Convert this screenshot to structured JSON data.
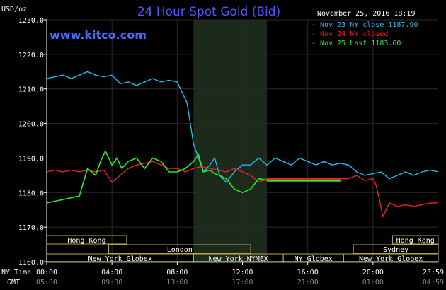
{
  "chart_data": {
    "type": "line",
    "title": "24 Hour Spot Gold (Bid)",
    "watermark": "www.kitco.com",
    "y_unit_label": "USD/oz",
    "timestamp": "November 25, 2016 18:19",
    "ylim": [
      1160,
      1230
    ],
    "y_ticks": [
      "1230.0",
      "1220.0",
      "1210.0",
      "1200.0",
      "1190.0",
      "1180.0",
      "1170.0",
      "1160.0"
    ],
    "y_tick_values": [
      1230,
      1220,
      1210,
      1200,
      1190,
      1180,
      1170,
      1160
    ],
    "x_axis_ny_label": "NY Time",
    "x_axis_gmt_label": "GMT",
    "x_ticks_ny": [
      "00:00",
      "04:00",
      "08:00",
      "12:00",
      "16:00",
      "20:00",
      "23:59"
    ],
    "x_ticks_gmt": [
      "05:00",
      "09:00",
      "13:00",
      "17:00",
      "21:00",
      "01:00",
      "04:59"
    ],
    "x_tick_hours": [
      0,
      4,
      8,
      12,
      16,
      20,
      23.98
    ],
    "xlim": [
      0,
      24
    ],
    "shaded_hours": [
      9,
      13.5
    ],
    "colors": {
      "background": "#000000",
      "grid": "#2a2a2a",
      "title": "#5555ff",
      "watermark": "#4a6cff",
      "text": "#ffffff",
      "axis": "#ffffff",
      "shade": "#1b2a1b",
      "session_border": "#b8a84a"
    },
    "legend": [
      {
        "text": "- Nov 23 NY close 1187.90",
        "color": "#22bbee"
      },
      {
        "text": "- Nov 24 NY closed",
        "color": "#ee2222"
      },
      {
        "text": "- Nov 25 Last 1183.60",
        "color": "#22ee22"
      }
    ],
    "sessions": [
      {
        "name": "Hong Kong",
        "start": 0,
        "end": 4.9,
        "row": 0
      },
      {
        "name": "Hong Kong",
        "start": 21.2,
        "end": 24,
        "row": 0
      },
      {
        "name": "London",
        "start": 3.8,
        "end": 12.5,
        "row": 1
      },
      {
        "name": "Sydney",
        "start": 18.8,
        "end": 24,
        "row": 1
      },
      {
        "name": "New York Globex",
        "start": 0,
        "end": 9,
        "row": 2
      },
      {
        "name": "New York NYMEX",
        "start": 9,
        "end": 14.5,
        "row": 2
      },
      {
        "name": "NY Globex",
        "start": 14.5,
        "end": 18.2,
        "row": 2
      },
      {
        "name": "New York Globex",
        "start": 18.2,
        "end": 24,
        "row": 2
      }
    ],
    "series": [
      {
        "name": "Nov 23",
        "color": "#22bbee",
        "x": [
          0,
          0.5,
          1,
          1.5,
          2,
          2.5,
          3,
          3.5,
          4,
          4.5,
          5,
          5.5,
          6,
          6.5,
          7,
          7.5,
          8,
          8.3,
          8.6,
          9,
          9.3,
          9.6,
          10,
          10.3,
          10.6,
          11,
          11.5,
          12,
          12.5,
          13,
          13.5,
          14,
          14.5,
          15,
          15.5,
          16,
          16.5,
          17,
          17.5,
          18,
          18.5,
          19,
          19.5,
          20,
          20.5,
          21,
          21.5,
          22,
          22.5,
          23,
          23.5,
          24
        ],
        "y": [
          1213,
          1213.5,
          1214,
          1213,
          1214,
          1215,
          1214,
          1213.5,
          1214,
          1211.5,
          1212,
          1211,
          1212,
          1213,
          1212,
          1212.5,
          1212,
          1209,
          1206,
          1194,
          1190,
          1186,
          1188,
          1190,
          1185,
          1183,
          1186,
          1188,
          1188,
          1190,
          1188,
          1190,
          1189,
          1188,
          1190,
          1189,
          1188,
          1189,
          1188,
          1188.5,
          1188,
          1186,
          1185,
          1185.5,
          1186,
          1184,
          1185,
          1186,
          1185,
          1186,
          1186.5,
          1186
        ]
      },
      {
        "name": "Nov 24",
        "color": "#ee2222",
        "x": [
          0,
          0.5,
          1,
          1.5,
          2,
          2.5,
          3,
          3.5,
          4,
          4.5,
          5,
          5.5,
          6,
          6.5,
          7,
          7.5,
          8,
          8.5,
          9,
          9.5,
          10,
          10.5,
          11,
          11.5,
          12,
          12.5,
          13,
          13.5,
          14,
          14.5,
          15,
          15.5,
          16,
          16.5,
          17,
          17.5,
          18,
          18.5,
          19,
          19.5,
          20,
          20.2,
          20.4,
          20.6,
          20.8,
          21,
          21.5,
          22,
          22.5,
          23,
          23.5,
          24
        ],
        "y": [
          1186,
          1186.5,
          1186,
          1186.5,
          1186,
          1186.5,
          1186,
          1186.5,
          1183,
          1185,
          1187,
          1188,
          1188.5,
          1189,
          1188,
          1187,
          1187,
          1186,
          1187,
          1187.5,
          1187,
          1186.5,
          1186,
          1187,
          1186,
          1185,
          1183,
          1184,
          1184,
          1184,
          1184,
          1184,
          1184,
          1184,
          1184,
          1184,
          1184,
          1184,
          1185,
          1183.5,
          1184,
          1182,
          1178,
          1173,
          1175,
          1177,
          1176,
          1176.5,
          1176,
          1176.5,
          1177,
          1177
        ]
      },
      {
        "name": "Nov 25",
        "color": "#22ee22",
        "x": [
          0,
          0.5,
          1,
          1.5,
          2,
          2.5,
          3,
          3.3,
          3.6,
          4,
          4.3,
          4.6,
          5,
          5.5,
          6,
          6.5,
          7,
          7.5,
          8,
          8.5,
          9,
          9.3,
          9.6,
          10,
          10.3,
          10.6,
          11,
          11.5,
          12,
          12.5,
          13,
          13.5,
          14,
          14.5,
          15,
          15.5,
          16,
          16.5,
          17,
          17.5,
          18
        ],
        "y": [
          1177,
          1177.5,
          1178,
          1178.5,
          1179,
          1187,
          1185,
          1189,
          1192,
          1188,
          1190,
          1187,
          1189,
          1190,
          1187,
          1190,
          1189,
          1186,
          1186,
          1187,
          1189,
          1191,
          1186,
          1186.5,
          1185.5,
          1185,
          1184,
          1181,
          1180,
          1181,
          1184,
          1183.6,
          1183.6,
          1183.6,
          1183.6,
          1183.6,
          1183.6,
          1183.6,
          1183.6,
          1183.6,
          1183.6
        ]
      }
    ]
  }
}
